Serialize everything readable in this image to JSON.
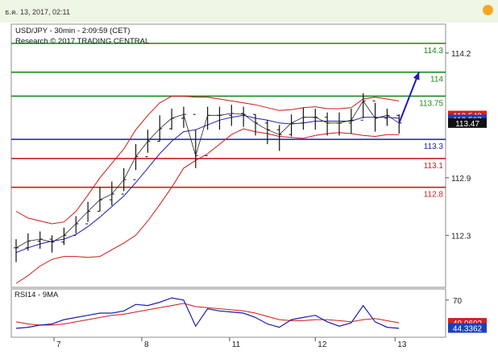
{
  "header": {
    "datetime": "ธ.ค. 13, 2017, 02:11",
    "title": "USD/JPY - 30min - 2:09:59 (CET)",
    "copyright": "Research © 2017 TRADING CENTRAL"
  },
  "chart_data": {
    "type": "line",
    "title": "USD/JPY - 30min - 2:09:59 (CET)",
    "subtitle": "Research © 2017 TRADING CENTRAL",
    "price_axis": {
      "ticks": [
        "114.2",
        "112.9",
        "112.3"
      ],
      "ylim": [
        111.85,
        114.45
      ]
    },
    "x_ticks": [
      "7",
      "8",
      "11",
      "12",
      "13"
    ],
    "price_series": {
      "x": [
        0,
        3,
        6,
        9,
        12,
        15,
        18,
        21,
        24,
        27,
        30,
        33,
        36,
        39,
        42,
        45,
        48,
        51,
        54,
        57,
        60,
        63,
        66,
        69,
        72,
        75,
        78,
        81,
        84,
        87,
        90,
        93,
        96
      ],
      "close": [
        112.17,
        112.24,
        112.26,
        112.23,
        112.3,
        112.42,
        112.55,
        112.67,
        112.73,
        112.88,
        113.12,
        113.28,
        113.41,
        113.52,
        113.56,
        113.13,
        113.55,
        113.55,
        113.57,
        113.56,
        113.47,
        113.4,
        113.35,
        113.47,
        113.53,
        113.53,
        113.47,
        113.47,
        113.5,
        113.7,
        113.52,
        113.55,
        113.47
      ],
      "high": [
        112.26,
        112.32,
        112.34,
        112.3,
        112.38,
        112.5,
        112.65,
        112.8,
        112.86,
        113.0,
        113.25,
        113.4,
        113.55,
        113.62,
        113.64,
        113.4,
        113.64,
        113.64,
        113.66,
        113.64,
        113.56,
        113.5,
        113.45,
        113.56,
        113.63,
        113.62,
        113.58,
        113.58,
        113.62,
        113.78,
        113.68,
        113.62,
        113.56
      ],
      "low": [
        112.02,
        112.14,
        112.16,
        112.12,
        112.2,
        112.32,
        112.44,
        112.55,
        112.61,
        112.76,
        112.98,
        113.16,
        113.28,
        113.4,
        113.42,
        113.0,
        113.4,
        113.4,
        113.44,
        113.43,
        113.34,
        113.25,
        113.18,
        113.33,
        113.4,
        113.4,
        113.34,
        113.34,
        113.36,
        113.52,
        113.38,
        113.44,
        113.36
      ]
    },
    "bollinger": {
      "middle": [
        112.12,
        112.17,
        112.21,
        112.24,
        112.26,
        112.31,
        112.39,
        112.49,
        112.6,
        112.71,
        112.85,
        113.0,
        113.15,
        113.28,
        113.38,
        113.4,
        113.45,
        113.5,
        113.53,
        113.55,
        113.52,
        113.5,
        113.47,
        113.46,
        113.47,
        113.49,
        113.49,
        113.49,
        113.49,
        113.53,
        113.53,
        113.53,
        113.52
      ],
      "upper": [
        112.55,
        112.48,
        112.45,
        112.42,
        112.44,
        112.55,
        112.72,
        112.9,
        113.05,
        113.2,
        113.4,
        113.55,
        113.68,
        113.75,
        113.75,
        113.74,
        113.74,
        113.72,
        113.7,
        113.68,
        113.66,
        113.63,
        113.6,
        113.61,
        113.63,
        113.64,
        113.62,
        113.62,
        113.63,
        113.72,
        113.74,
        113.72,
        113.7
      ],
      "lower": [
        111.8,
        111.88,
        111.98,
        112.05,
        112.08,
        112.08,
        112.07,
        112.08,
        112.15,
        112.22,
        112.3,
        112.45,
        112.62,
        112.8,
        113.0,
        113.08,
        113.15,
        113.25,
        113.35,
        113.41,
        113.38,
        113.36,
        113.33,
        113.32,
        113.31,
        113.34,
        113.36,
        113.37,
        113.36,
        113.34,
        113.33,
        113.35,
        113.35
      ]
    },
    "levels": [
      {
        "value": 114.3,
        "label": "114.3",
        "color": "#1a8a1a"
      },
      {
        "value": 114.0,
        "label": "114",
        "color": "#1a8a1a"
      },
      {
        "value": 113.75,
        "label": "113.75",
        "color": "#1a8a1a"
      },
      {
        "value": 113.3,
        "label": "113.3",
        "color": "#1c1cb4"
      },
      {
        "value": 113.1,
        "label": "113.1",
        "color": "#cc1f1f"
      },
      {
        "value": 112.8,
        "label": "112.8",
        "color": "#cc1f1f"
      }
    ],
    "forecast_arrow": {
      "x_from": 96,
      "y_from": 113.47,
      "x_to": 101,
      "y_to": 114.0,
      "color": "#1c1cb4"
    },
    "price_tags": [
      {
        "value": 113.548,
        "label": "113.548",
        "bg": "#d62020"
      },
      {
        "value": 113.507,
        "label": "113.507",
        "bg": "#1c3fb8"
      },
      {
        "value": 113.47,
        "label": "113.47",
        "bg": "#111111"
      }
    ],
    "rsi": {
      "title": "RSI14 - 9MA",
      "ylim": [
        38,
        78
      ],
      "ticks": [
        "70"
      ],
      "rsi": [
        44,
        45,
        47,
        48,
        52,
        54,
        56,
        58,
        58,
        60,
        66,
        65,
        68,
        72,
        70,
        46,
        62,
        60,
        59,
        58,
        54,
        48,
        45,
        52,
        54,
        56,
        50,
        46,
        49,
        65,
        50,
        45,
        44
      ],
      "ma": [
        50,
        48,
        47,
        47,
        48,
        50,
        52,
        54,
        56,
        57,
        59,
        61,
        63,
        65,
        67,
        64,
        63,
        62,
        61,
        60,
        58,
        55,
        52,
        51,
        51,
        52,
        52,
        51,
        50,
        52,
        53,
        51,
        49
      ],
      "tags": [
        {
          "value": 49.0602,
          "label": "49.0602",
          "bg": "#d62020"
        },
        {
          "value": 44.3362,
          "label": "44.3362",
          "bg": "#1c3fb8"
        }
      ]
    }
  }
}
